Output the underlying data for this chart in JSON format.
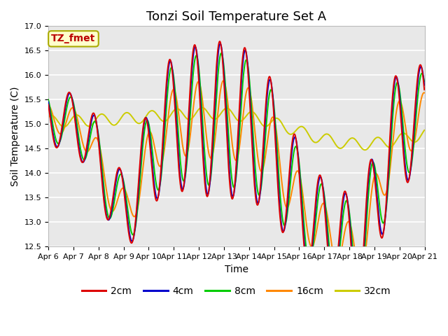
{
  "title": "Tonzi Soil Temperature Set A",
  "xlabel": "Time",
  "ylabel": "Soil Temperature (C)",
  "ylim": [
    12.5,
    17.0
  ],
  "yticks": [
    12.5,
    13.0,
    13.5,
    14.0,
    14.5,
    15.0,
    15.5,
    16.0,
    16.5,
    17.0
  ],
  "x_tick_labels": [
    "Apr 6",
    "Apr 7",
    "Apr 8",
    "Apr 9",
    "Apr 10",
    "Apr 11",
    "Apr 12",
    "Apr 13",
    "Apr 14",
    "Apr 15",
    "Apr 16",
    "Apr 17",
    "Apr 18",
    "Apr 19",
    "Apr 20",
    "Apr 21"
  ],
  "series_colors": [
    "#dd0000",
    "#0000cc",
    "#00cc00",
    "#ff8800",
    "#cccc00"
  ],
  "series_labels": [
    "2cm",
    "4cm",
    "8cm",
    "16cm",
    "32cm"
  ],
  "legend_label": "TZ_fmet",
  "legend_box_color": "#ffffcc",
  "legend_box_edge": "#aaaa00",
  "background_color": "#e8e8e8",
  "grid_color": "#ffffff",
  "title_fontsize": 13,
  "axis_fontsize": 10,
  "tick_fontsize": 8,
  "legend_fontsize": 10,
  "line_width": 1.4,
  "n_days": 15,
  "hours_per_day": 24,
  "pts_per_hour": 4
}
